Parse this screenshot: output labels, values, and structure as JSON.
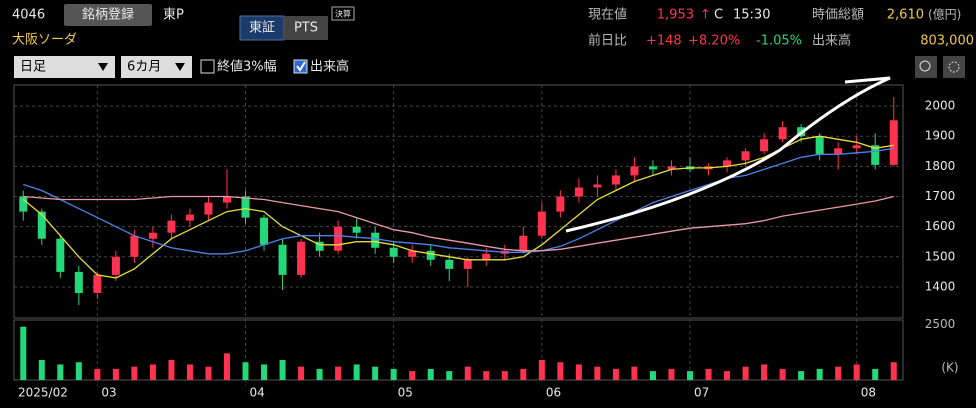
{
  "header": {
    "code": "4046",
    "register": "銘柄登録",
    "market": "東P",
    "name": "大阪ソーダ",
    "tabs": [
      "東証",
      "PTS"
    ],
    "badge": "決算",
    "price_label": "現在値",
    "price": "1,953",
    "arrow": "↑",
    "price_flag": "C",
    "time": "15:30",
    "mcap_label": "時価総額",
    "mcap": "2,610",
    "mcap_unit": "(億円)",
    "change_label": "前日比",
    "change": "+148",
    "change_pct": "+8.20%",
    "other_pct": "-1.05%",
    "volume_label": "出来高",
    "volume": "803,000"
  },
  "controls": {
    "period": "日足",
    "range": "6カ月",
    "checkbox1": "終値3%幅",
    "checkbox2": "出来高"
  },
  "chart_data": {
    "type": "candlestick",
    "categories": [
      "2025/02",
      null,
      null,
      null,
      "03",
      null,
      null,
      null,
      null,
      null,
      null,
      null,
      "04",
      null,
      null,
      null,
      null,
      null,
      null,
      null,
      "05",
      null,
      null,
      null,
      null,
      null,
      null,
      null,
      "06",
      null,
      null,
      null,
      null,
      null,
      null,
      null,
      "07",
      null,
      null,
      null,
      null,
      null,
      null,
      null,
      null,
      "08",
      null,
      null
    ],
    "open": [
      1700,
      1650,
      1560,
      1450,
      1380,
      1440,
      1500,
      1560,
      1580,
      1620,
      1640,
      1680,
      1700,
      1630,
      1540,
      1440,
      1550,
      1520,
      1600,
      1580,
      1530,
      1500,
      1520,
      1490,
      1460,
      1490,
      1510,
      1520,
      1570,
      1650,
      1700,
      1730,
      1740,
      1770,
      1800,
      1790,
      1800,
      1790,
      1800,
      1820,
      1850,
      1890,
      1930,
      1900,
      1840,
      1860,
      1870,
      1805
    ],
    "high": [
      1720,
      1660,
      1570,
      1470,
      1450,
      1520,
      1590,
      1600,
      1640,
      1660,
      1700,
      1790,
      1720,
      1640,
      1560,
      1560,
      1580,
      1620,
      1630,
      1600,
      1550,
      1540,
      1540,
      1510,
      1500,
      1530,
      1540,
      1600,
      1680,
      1720,
      1760,
      1770,
      1790,
      1830,
      1820,
      1820,
      1830,
      1810,
      1830,
      1860,
      1910,
      1950,
      1940,
      1910,
      1880,
      1900,
      1910,
      2030
    ],
    "low": [
      1620,
      1540,
      1430,
      1340,
      1360,
      1420,
      1480,
      1530,
      1560,
      1600,
      1620,
      1660,
      1610,
      1520,
      1390,
      1430,
      1500,
      1510,
      1560,
      1510,
      1480,
      1480,
      1470,
      1420,
      1400,
      1470,
      1490,
      1510,
      1560,
      1630,
      1680,
      1700,
      1720,
      1750,
      1770,
      1770,
      1780,
      1770,
      1780,
      1800,
      1840,
      1880,
      1880,
      1820,
      1790,
      1840,
      1790,
      1800
    ],
    "close": [
      1650,
      1560,
      1450,
      1380,
      1440,
      1500,
      1570,
      1580,
      1620,
      1640,
      1680,
      1700,
      1630,
      1540,
      1440,
      1550,
      1520,
      1600,
      1580,
      1530,
      1500,
      1520,
      1490,
      1460,
      1490,
      1510,
      1520,
      1570,
      1650,
      1700,
      1730,
      1740,
      1770,
      1800,
      1790,
      1800,
      1790,
      1800,
      1820,
      1850,
      1890,
      1930,
      1900,
      1840,
      1860,
      1870,
      1805,
      1953
    ],
    "up_color": "#ff3350",
    "down_color": "#22d87a",
    "lines": [
      {
        "color": "#e6dd3c",
        "values": [
          1690,
          1640,
          1570,
          1500,
          1440,
          1430,
          1460,
          1510,
          1560,
          1590,
          1620,
          1650,
          1660,
          1650,
          1600,
          1570,
          1540,
          1540,
          1550,
          1550,
          1540,
          1520,
          1510,
          1500,
          1490,
          1490,
          1490,
          1500,
          1540,
          1590,
          1640,
          1690,
          1720,
          1750,
          1770,
          1790,
          1795,
          1795,
          1800,
          1810,
          1830,
          1860,
          1890,
          1900,
          1890,
          1880,
          1860,
          1870
        ]
      },
      {
        "color": "#4c82e8",
        "values": [
          1740,
          1720,
          1690,
          1660,
          1630,
          1600,
          1570,
          1550,
          1530,
          1520,
          1510,
          1510,
          1520,
          1540,
          1560,
          1570,
          1570,
          1570,
          1565,
          1560,
          1550,
          1545,
          1540,
          1530,
          1525,
          1520,
          1515,
          1515,
          1520,
          1535,
          1560,
          1590,
          1620,
          1650,
          1680,
          1700,
          1720,
          1740,
          1760,
          1770,
          1790,
          1810,
          1830,
          1840,
          1840,
          1845,
          1850,
          1860
        ]
      },
      {
        "color": "#e898a8",
        "values": [
          1700,
          1695,
          1690,
          1690,
          1690,
          1690,
          1690,
          1695,
          1700,
          1700,
          1700,
          1700,
          1695,
          1690,
          1680,
          1670,
          1660,
          1650,
          1630,
          1610,
          1590,
          1580,
          1565,
          1555,
          1545,
          1535,
          1525,
          1520,
          1520,
          1525,
          1535,
          1545,
          1555,
          1565,
          1575,
          1585,
          1595,
          1600,
          1605,
          1610,
          1620,
          1635,
          1645,
          1655,
          1665,
          1675,
          1685,
          1700
        ]
      }
    ],
    "ylim": [
      1297,
      2070
    ],
    "yticks": [
      1400,
      1500,
      1600,
      1700,
      1800,
      1900,
      2000
    ],
    "grid": true,
    "volume": {
      "values": [
        2400,
        900,
        700,
        800,
        500,
        500,
        600,
        700,
        900,
        700,
        600,
        1200,
        800,
        700,
        900,
        600,
        500,
        600,
        700,
        600,
        500,
        400,
        500,
        400,
        600,
        400,
        400,
        500,
        900,
        800,
        700,
        600,
        500,
        600,
        400,
        500,
        400,
        500,
        400,
        600,
        700,
        500,
        400,
        500,
        600,
        700,
        500,
        800
      ],
      "ylim": [
        0,
        2700
      ],
      "yticks": [
        2500
      ],
      "unit": "(K)"
    }
  }
}
